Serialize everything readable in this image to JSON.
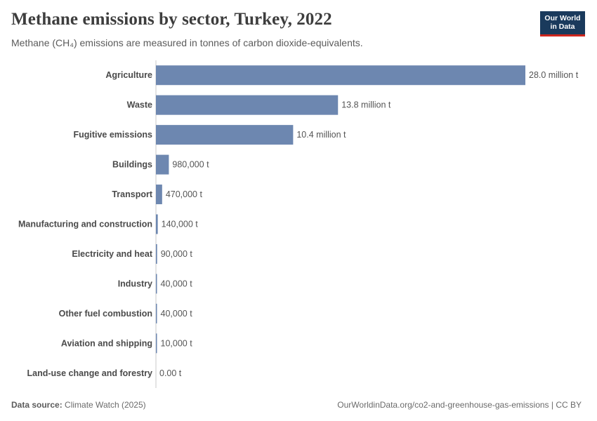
{
  "header": {
    "title": "Methane emissions by sector, Turkey, 2022",
    "subtitle": "Methane (CH₄) emissions are measured in tonnes of carbon dioxide-equivalents.",
    "logo_line1": "Our World",
    "logo_line2": "in Data"
  },
  "footer": {
    "source_label": "Data source:",
    "source_value": "Climate Watch (2025)",
    "url_license": "OurWorldinData.org/co2-and-greenhouse-gas-emissions | CC BY"
  },
  "colors": {
    "bar": "#6d87b0",
    "axis": "#c8c8c8",
    "logo_bg": "#1a3a5c",
    "logo_accent": "#ce261e"
  },
  "chart_data": {
    "type": "bar",
    "orientation": "horizontal",
    "title": "Methane emissions by sector, Turkey, 2022",
    "unit": "tonnes of carbon dioxide-equivalents",
    "categories": [
      "Agriculture",
      "Waste",
      "Fugitive emissions",
      "Buildings",
      "Transport",
      "Manufacturing and construction",
      "Electricity and heat",
      "Industry",
      "Other fuel combustion",
      "Aviation and shipping",
      "Land-use change and forestry"
    ],
    "values": [
      28000000,
      13800000,
      10400000,
      980000,
      470000,
      140000,
      90000,
      40000,
      40000,
      10000,
      0
    ],
    "value_labels": [
      "28.0 million t",
      "13.8 million t",
      "10.4 million t",
      "980,000 t",
      "470,000 t",
      "140,000 t",
      "90,000 t",
      "40,000 t",
      "40,000 t",
      "10,000 t",
      "0.00 t"
    ],
    "xlim": [
      0,
      28000000
    ],
    "grid": false,
    "legend": "none"
  }
}
